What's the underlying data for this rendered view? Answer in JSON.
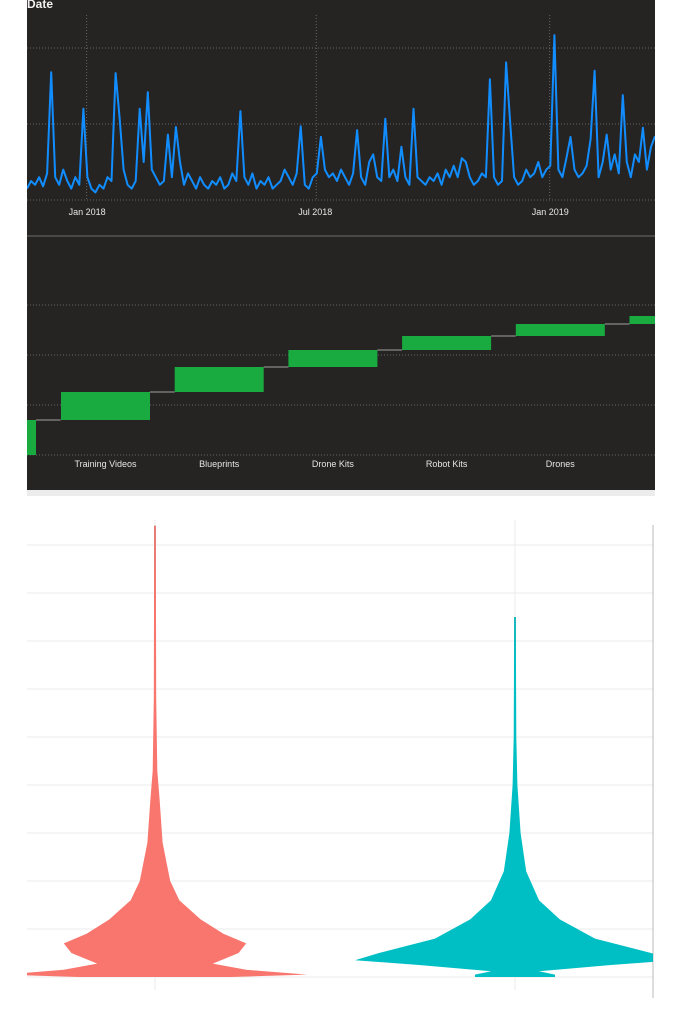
{
  "chart_data": [
    {
      "type": "line",
      "title": "Date",
      "x_range": [
        "2017-11-15",
        "2019-03-25"
      ],
      "x_ticks": [
        "Jan 2018",
        "Jul 2018",
        "Jan 2019"
      ],
      "x_tick_dates": [
        "2018-01-01",
        "2018-07-01",
        "2019-01-01"
      ],
      "grid": true,
      "ylim": [
        0,
        2.0
      ],
      "color": "#118DFF",
      "values": [
        0.15,
        0.25,
        0.2,
        0.3,
        0.18,
        0.35,
        1.68,
        0.3,
        0.2,
        0.4,
        0.25,
        0.15,
        0.3,
        0.2,
        1.2,
        0.3,
        0.15,
        0.1,
        0.2,
        0.15,
        0.3,
        0.25,
        1.67,
        1.08,
        0.4,
        0.2,
        0.15,
        0.25,
        1.2,
        0.5,
        1.42,
        0.4,
        0.3,
        0.2,
        0.25,
        0.86,
        0.3,
        0.96,
        0.5,
        0.2,
        0.35,
        0.25,
        0.15,
        0.3,
        0.2,
        0.15,
        0.25,
        0.2,
        0.3,
        0.15,
        0.2,
        0.35,
        0.25,
        1.17,
        0.3,
        0.2,
        0.35,
        0.15,
        0.25,
        0.2,
        0.3,
        0.15,
        0.2,
        0.25,
        0.4,
        0.3,
        0.2,
        0.35,
        0.97,
        0.2,
        0.15,
        0.3,
        0.35,
        0.83,
        0.4,
        0.3,
        0.35,
        0.25,
        0.4,
        0.3,
        0.2,
        0.35,
        0.92,
        0.3,
        0.2,
        0.5,
        0.6,
        0.3,
        0.25,
        1.07,
        0.3,
        0.4,
        0.25,
        0.7,
        0.3,
        0.2,
        1.2,
        0.3,
        0.25,
        0.2,
        0.3,
        0.25,
        0.35,
        0.2,
        0.4,
        0.3,
        0.45,
        0.3,
        0.55,
        0.5,
        0.3,
        0.2,
        0.25,
        0.35,
        0.3,
        1.59,
        0.3,
        0.2,
        0.25,
        1.81,
        1.03,
        0.3,
        0.2,
        0.25,
        0.4,
        0.3,
        0.35,
        0.5,
        0.3,
        0.4,
        0.45,
        2.17,
        0.4,
        0.3,
        0.55,
        0.83,
        0.4,
        0.3,
        0.35,
        0.45,
        0.8,
        1.7,
        0.3,
        0.5,
        0.86,
        0.4,
        0.6,
        0.35,
        1.38,
        0.5,
        0.3,
        0.6,
        0.5,
        0.95,
        0.4,
        0.7,
        0.84
      ]
    },
    {
      "type": "waterfall",
      "categories": [
        "",
        "Training Videos",
        "Blueprints",
        "Drone Kits",
        "Robot Kits",
        "Drones",
        ""
      ],
      "values": [
        7.0,
        5.6,
        5.0,
        3.4,
        2.8,
        2.4,
        1.6
      ],
      "ylim": [
        0,
        30
      ],
      "grid": true,
      "color": "#1AAB40"
    },
    {
      "type": "violin",
      "grid": true,
      "ylim": [
        0,
        10
      ],
      "series": [
        {
          "color": "#F8766D",
          "profile": [
            [
              0,
              0.5
            ],
            [
              0.05,
              1.0
            ],
            [
              0.15,
              0.6
            ],
            [
              0.28,
              0.38
            ],
            [
              0.5,
              0.55
            ],
            [
              0.7,
              0.6
            ],
            [
              0.9,
              0.45
            ],
            [
              1.2,
              0.3
            ],
            [
              1.6,
              0.16
            ],
            [
              2.0,
              0.1
            ],
            [
              2.8,
              0.05
            ],
            [
              3.7,
              0.03
            ],
            [
              4.3,
              0.015
            ],
            [
              5.8,
              0.008
            ],
            [
              9.4,
              0.004
            ]
          ]
        },
        {
          "color": "#00BFC4",
          "profile": [
            [
              0,
              0.25
            ],
            [
              0.05,
              0.25
            ],
            [
              0.12,
              0.15
            ],
            [
              0.25,
              0.6
            ],
            [
              0.35,
              1.0
            ],
            [
              0.5,
              0.85
            ],
            [
              0.8,
              0.5
            ],
            [
              1.2,
              0.28
            ],
            [
              1.6,
              0.15
            ],
            [
              2.2,
              0.07
            ],
            [
              3.0,
              0.035
            ],
            [
              4.0,
              0.015
            ],
            [
              5.0,
              0.008
            ],
            [
              7.5,
              0.004
            ]
          ]
        }
      ]
    }
  ]
}
